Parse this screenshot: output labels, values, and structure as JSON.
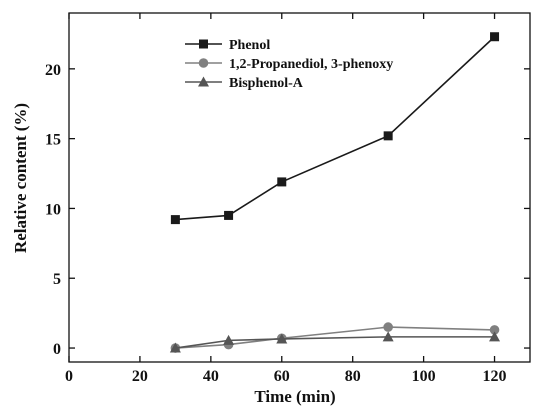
{
  "chart_data": {
    "type": "line",
    "title": "",
    "xlabel": "Time (min)",
    "ylabel": "Relative content (%)",
    "xlim": [
      0,
      130
    ],
    "ylim": [
      -1,
      24
    ],
    "xticks": [
      0,
      20,
      40,
      60,
      80,
      100,
      120
    ],
    "yticks": [
      0,
      5,
      10,
      15,
      20
    ],
    "grid": false,
    "legend_position": "top-left",
    "series": [
      {
        "name": "Phenol",
        "marker": "square",
        "color": "#1a1a1a",
        "x": [
          30,
          45,
          60,
          90,
          120
        ],
        "y": [
          9.2,
          9.5,
          11.9,
          15.2,
          22.3
        ]
      },
      {
        "name": "1,2-Propanediol, 3-phenoxy",
        "marker": "circle",
        "color": "#808080",
        "x": [
          30,
          45,
          60,
          90,
          120
        ],
        "y": [
          0.0,
          0.25,
          0.7,
          1.5,
          1.3
        ]
      },
      {
        "name": "Bisphenol-A",
        "marker": "triangle",
        "color": "#555555",
        "x": [
          30,
          45,
          60,
          90,
          120
        ],
        "y": [
          0.0,
          0.55,
          0.65,
          0.8,
          0.8
        ]
      }
    ]
  }
}
